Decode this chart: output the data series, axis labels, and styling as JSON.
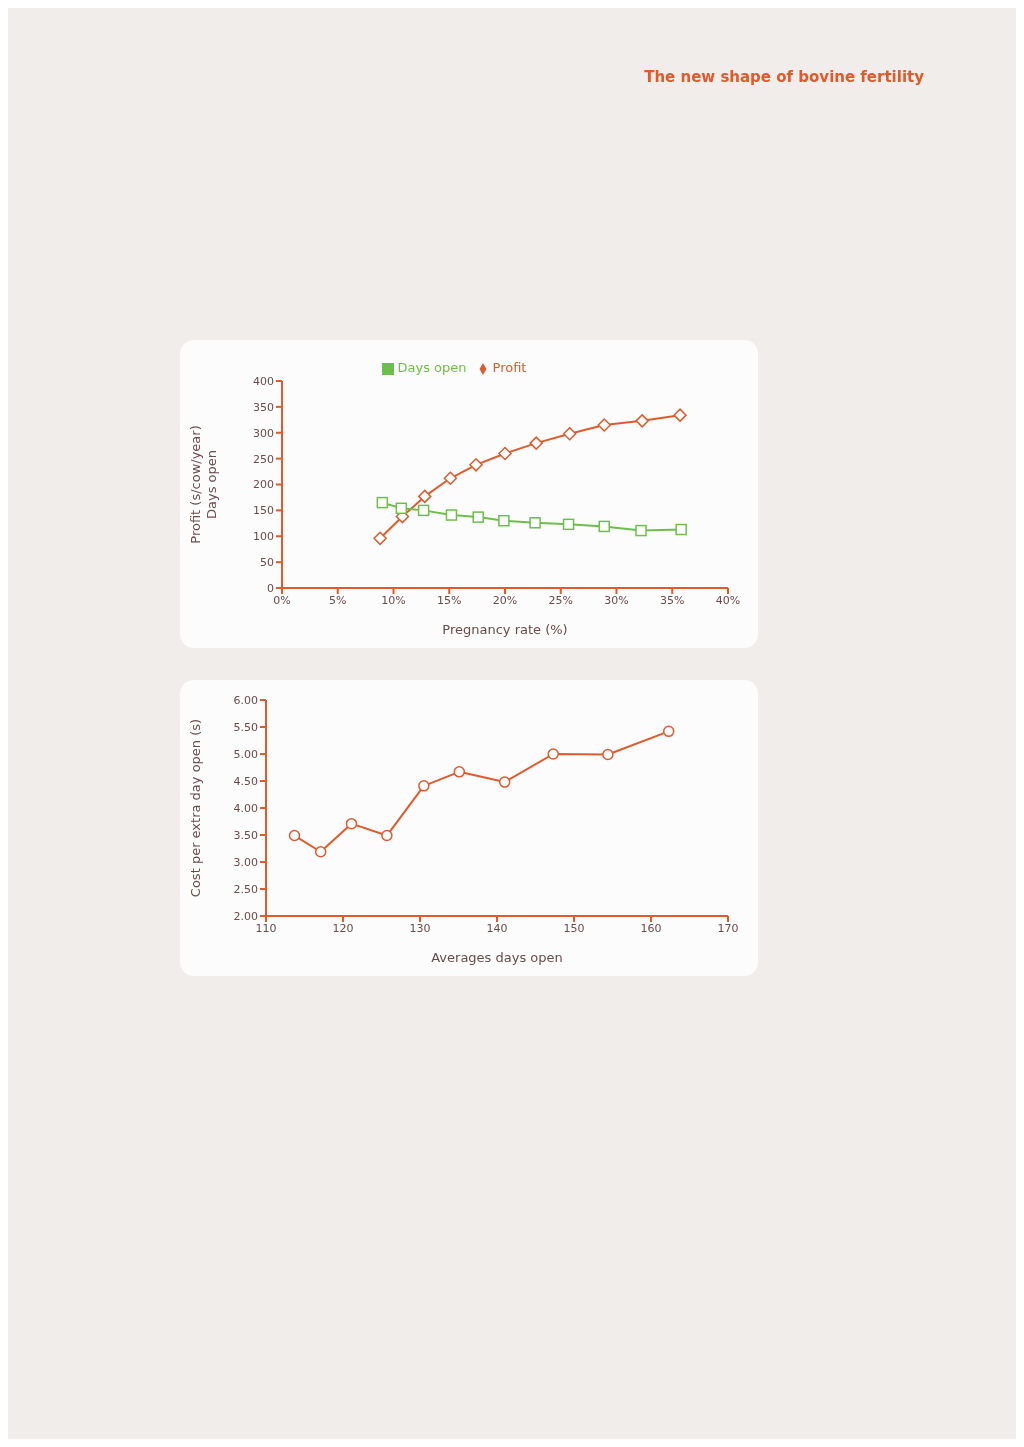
{
  "chart_data": [
    {
      "type": "line",
      "ylabel": "Profit (s/cow/year)\nDays open",
      "xlabel": "Pregnancy rate (%)",
      "annotations": [
        "The new shape of bovine fertility"
      ],
      "xlim": [
        0,
        40
      ],
      "xticks": [
        {
          "value": 0,
          "label": "0%"
        },
        {
          "value": 5,
          "label": "5%"
        },
        {
          "value": 10,
          "label": "10%"
        },
        {
          "value": 15,
          "label": "15%"
        },
        {
          "value": 20,
          "label": "20%"
        },
        {
          "value": 25,
          "label": "25%"
        },
        {
          "value": 30,
          "label": "30%"
        },
        {
          "value": 35,
          "label": "35%"
        },
        {
          "value": 40,
          "label": "40%"
        }
      ],
      "ylim": [
        0,
        400
      ],
      "yticks": [
        0,
        50,
        100,
        150,
        200,
        250,
        300,
        350,
        400
      ],
      "grid": false,
      "legend": "top",
      "line_style": "solid",
      "series": [
        {
          "name": "Profit",
          "color": "#e05a2b",
          "marker": "diamond",
          "x": [
            8.8,
            10.8,
            12.8,
            15.1,
            17.4,
            20,
            22.8,
            25.8,
            28.9,
            32.3,
            35.7
          ],
          "values": [
            96,
            138,
            177,
            212,
            238,
            260,
            280,
            298,
            315,
            323,
            334
          ]
        },
        {
          "name": "Days open",
          "color": "#6cbf4a",
          "marker": "square",
          "x": [
            9.0,
            10.7,
            12.7,
            15.2,
            17.6,
            19.9,
            22.7,
            25.7,
            28.9,
            32.2,
            35.8
          ],
          "values": [
            165,
            154,
            150,
            141,
            137,
            130,
            126,
            123,
            119,
            111,
            113
          ]
        }
      ]
    },
    {
      "type": "line",
      "ylabel": "Cost per extra day open (s)",
      "xlabel": "Averages days open",
      "xlim": [
        110,
        170
      ],
      "xticks": [
        110,
        120,
        130,
        140,
        150,
        160,
        170
      ],
      "ylim": [
        2,
        6
      ],
      "yticks": [
        {
          "value": 2,
          "label": "2.00"
        },
        {
          "value": 2.5,
          "label": "2.50"
        },
        {
          "value": 3,
          "label": "3.00"
        },
        {
          "value": 3.5,
          "label": "3.50"
        },
        {
          "value": 4,
          "label": "4.00"
        },
        {
          "value": 4.5,
          "label": "4.50"
        },
        {
          "value": 5,
          "label": "5.00"
        },
        {
          "value": 5.5,
          "label": "5.50"
        },
        {
          "value": 6,
          "label": "6.00"
        }
      ],
      "grid": false,
      "legend": false,
      "line_style": "solid",
      "series": [
        {
          "color": "#e05a2b",
          "marker": "circle",
          "x": [
            113.7,
            117.1,
            121.1,
            125.7,
            130.5,
            135.1,
            141.0,
            147.3,
            154.4,
            162.3
          ],
          "values": [
            3.49,
            3.19,
            3.71,
            3.49,
            4.41,
            4.67,
            4.48,
            5.0,
            4.99,
            5.42
          ]
        }
      ]
    }
  ]
}
